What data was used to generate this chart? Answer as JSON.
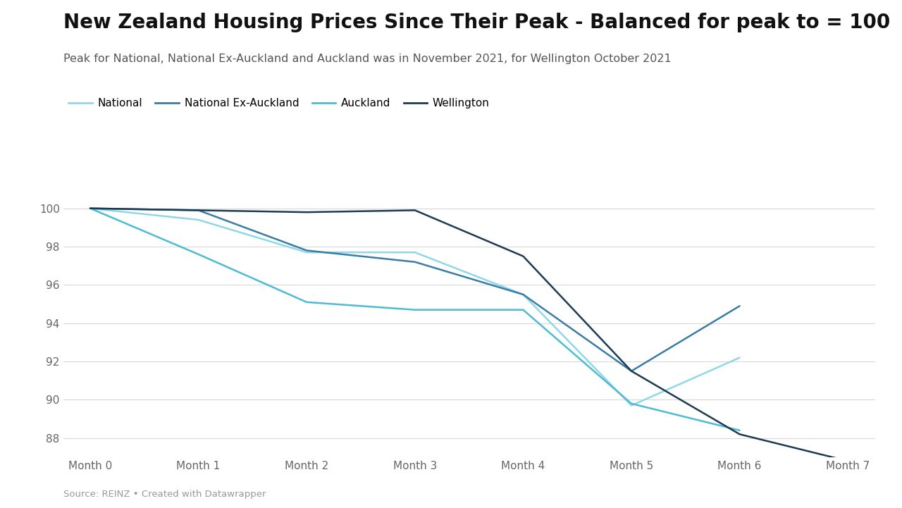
{
  "title": "New Zealand Housing Prices Since Their Peak - Balanced for peak to = 100",
  "subtitle": "Peak for National, National Ex-Auckland and Auckland was in November 2021, for Wellington October 2021",
  "source": "Source: REINZ • Created with Datawrapper",
  "x_labels": [
    "Month 0",
    "Month 1",
    "Month 2",
    "Month 3",
    "Month 4",
    "Month 5",
    "Month 6",
    "Month 7"
  ],
  "series": [
    {
      "name": "National",
      "color": "#8ed8e8",
      "linewidth": 1.8,
      "values": [
        100,
        99.4,
        97.7,
        97.7,
        95.5,
        89.7,
        92.2,
        null
      ]
    },
    {
      "name": "National Ex-Auckland",
      "color": "#3a7ca5",
      "linewidth": 1.8,
      "values": [
        100,
        99.9,
        97.8,
        97.2,
        95.5,
        91.5,
        94.9,
        null
      ]
    },
    {
      "name": "Auckland",
      "color": "#4bbcd4",
      "linewidth": 1.8,
      "values": [
        100,
        97.6,
        95.1,
        94.7,
        94.7,
        89.8,
        88.4,
        null
      ]
    },
    {
      "name": "Wellington",
      "color": "#1c3a52",
      "linewidth": 1.8,
      "values": [
        100,
        99.9,
        99.8,
        99.9,
        97.5,
        91.5,
        88.2,
        86.8
      ]
    }
  ],
  "ylim": [
    87.0,
    100.8
  ],
  "yticks": [
    88,
    90,
    92,
    94,
    96,
    98,
    100
  ],
  "xlim": [
    -0.25,
    7.25
  ],
  "background_color": "#ffffff",
  "plot_bg_color": "#f9f9f9",
  "grid_color": "#d8d8d8",
  "title_fontsize": 20,
  "subtitle_fontsize": 11.5,
  "legend_fontsize": 11,
  "tick_fontsize": 11,
  "source_fontsize": 9.5,
  "title_color": "#111111",
  "subtitle_color": "#555555",
  "tick_color": "#666666",
  "source_color": "#999999"
}
